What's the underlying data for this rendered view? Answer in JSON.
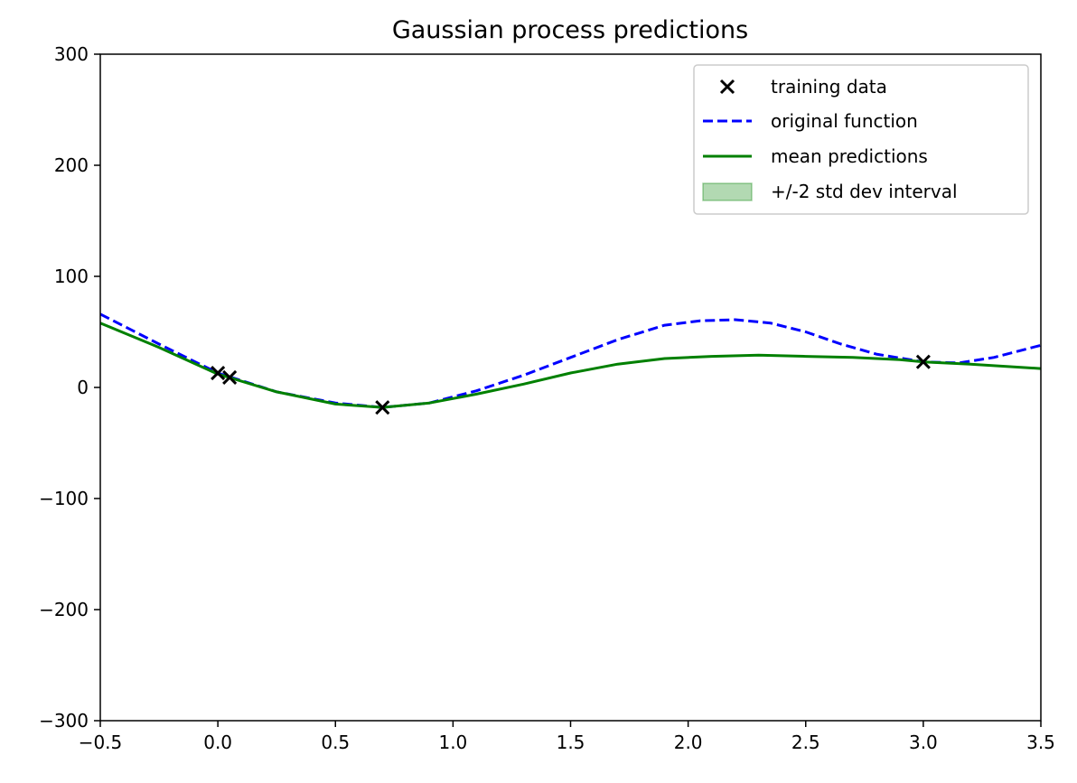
{
  "chart_data": {
    "type": "line",
    "title": "Gaussian process predictions",
    "xlabel": "",
    "ylabel": "",
    "xlim": [
      -0.5,
      3.5
    ],
    "ylim": [
      -300,
      300
    ],
    "xticks": [
      -0.5,
      0.0,
      0.5,
      1.0,
      1.5,
      2.0,
      2.5,
      3.0,
      3.5
    ],
    "xtick_labels": [
      "−0.5",
      "0.0",
      "0.5",
      "1.0",
      "1.5",
      "2.0",
      "2.5",
      "3.0",
      "3.5"
    ],
    "yticks": [
      -300,
      -200,
      -100,
      0,
      100,
      200,
      300
    ],
    "ytick_labels": [
      "−300",
      "−200",
      "−100",
      "0",
      "100",
      "200",
      "300"
    ],
    "grid": false,
    "legend_position": "top-right",
    "series": [
      {
        "name": "original function",
        "style": "dashed",
        "color": "#0000ff",
        "x": [
          -0.5,
          -0.25,
          0.0,
          0.25,
          0.5,
          0.7,
          0.9,
          1.1,
          1.3,
          1.5,
          1.7,
          1.9,
          2.05,
          2.2,
          2.35,
          2.5,
          2.65,
          2.8,
          3.0,
          3.15,
          3.3,
          3.5
        ],
        "y": [
          66,
          39,
          13,
          -4,
          -14,
          -18,
          -14,
          -3,
          11,
          27,
          43,
          56,
          60,
          61,
          58,
          50,
          39,
          30,
          23,
          22,
          27,
          38
        ]
      },
      {
        "name": "mean predictions",
        "style": "solid",
        "color": "#008000",
        "x": [
          -0.5,
          -0.25,
          0.0,
          0.25,
          0.5,
          0.7,
          0.9,
          1.1,
          1.3,
          1.5,
          1.7,
          1.9,
          2.1,
          2.3,
          2.5,
          2.7,
          2.9,
          3.0,
          3.2,
          3.5
        ],
        "y": [
          58,
          36,
          12,
          -4,
          -15,
          -18,
          -14,
          -6,
          3,
          13,
          21,
          26,
          28,
          29,
          28,
          27,
          25,
          23,
          21,
          17
        ]
      }
    ],
    "training_data": {
      "name": "training data",
      "color": "#000000",
      "x": [
        0.0,
        0.05,
        0.7,
        3.0
      ],
      "y": [
        13,
        9,
        -18,
        23
      ]
    },
    "interval": {
      "name": "+/-2 std dev interval",
      "color": "#008000",
      "opacity": 0.3
    },
    "legend": [
      {
        "label": "training data",
        "kind": "marker"
      },
      {
        "label": "original function",
        "kind": "dashed"
      },
      {
        "label": "mean predictions",
        "kind": "solid"
      },
      {
        "label": "+/-2 std dev interval",
        "kind": "patch"
      }
    ]
  }
}
